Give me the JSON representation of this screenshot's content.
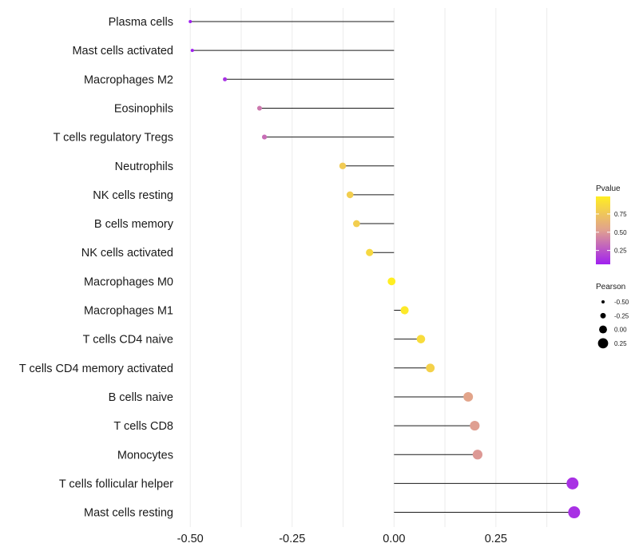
{
  "chart_data": {
    "type": "lollipop",
    "title": "",
    "xlabel": "",
    "ylabel": "",
    "xlim": [
      -0.52,
      0.46
    ],
    "x_ticks": [
      -0.5,
      -0.25,
      0.0,
      0.25
    ],
    "x_tick_labels": [
      "-0.50",
      "-0.25",
      "0.00",
      "0.25"
    ],
    "grid": true,
    "baseline": 0,
    "categories": [
      "Plasma cells",
      "Mast cells activated",
      "Macrophages M2",
      "Eosinophils",
      "T cells regulatory  Tregs",
      "Neutrophils",
      "NK cells resting",
      "B cells memory",
      "NK cells activated",
      "Macrophages M0",
      "Macrophages M1",
      "T cells CD4 naive",
      "T cells CD4 memory activated",
      "B cells naive",
      "T cells CD8",
      "Monocytes",
      "T cells follicular helper",
      "Mast cells resting"
    ],
    "pearson": [
      -0.5,
      -0.495,
      -0.415,
      -0.33,
      -0.318,
      -0.126,
      -0.108,
      -0.092,
      -0.06,
      -0.006,
      0.026,
      0.066,
      0.089,
      0.182,
      0.198,
      0.205,
      0.438,
      0.442
    ],
    "pvalue": [
      0.06,
      0.06,
      0.12,
      0.38,
      0.34,
      0.78,
      0.8,
      0.8,
      0.86,
      0.99,
      0.96,
      0.88,
      0.82,
      0.55,
      0.52,
      0.5,
      0.12,
      0.12
    ],
    "color_scale": {
      "low_color": "#a020f0",
      "mid_color": "#e0a090",
      "high_color": "#ffee22",
      "domain": [
        0.06,
        0.99
      ]
    },
    "legend_pvalue": {
      "title": "Pvalue",
      "ticks": [
        0.75,
        0.5,
        0.25
      ],
      "tick_labels": [
        "0.75",
        "0.50",
        "0.25"
      ]
    },
    "legend_pearson": {
      "title": "Pearson",
      "values": [
        -0.5,
        -0.25,
        0.0,
        0.25
      ],
      "labels": [
        "-0.50",
        "-0.25",
        "0.00",
        "0.25"
      ]
    },
    "legend_position": "right"
  }
}
